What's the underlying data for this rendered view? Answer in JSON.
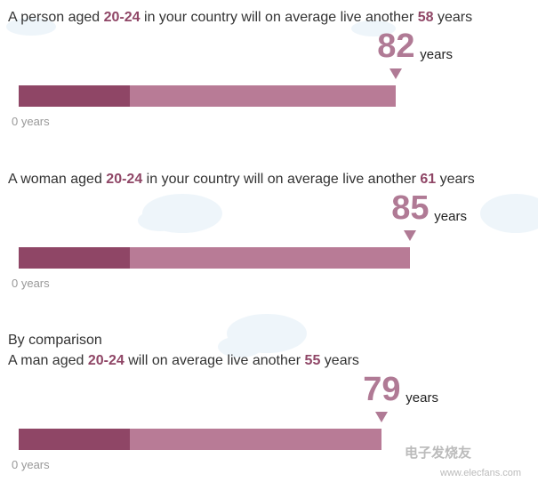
{
  "sections": [
    {
      "prefix": "A person aged ",
      "age": "20-24",
      "middle": " in your country will on average live another ",
      "remaining": "58",
      "suffix": " years",
      "total": 82,
      "unit": "years",
      "axis_label": "0 years"
    },
    {
      "prefix": "A woman aged ",
      "age": "20-24",
      "middle": " in your country will on average live another ",
      "remaining": "61",
      "suffix": " years",
      "total": 85,
      "unit": "years",
      "axis_label": "0 years"
    },
    {
      "intro": "By comparison",
      "prefix": "A man aged ",
      "age": "20-24",
      "middle": " will on average live another ",
      "remaining": "55",
      "suffix": " years",
      "total": 79,
      "unit": "years",
      "axis_label": "0 years"
    }
  ],
  "watermark": {
    "brand": "电子发烧友",
    "url": "www.elecfans.com"
  }
}
